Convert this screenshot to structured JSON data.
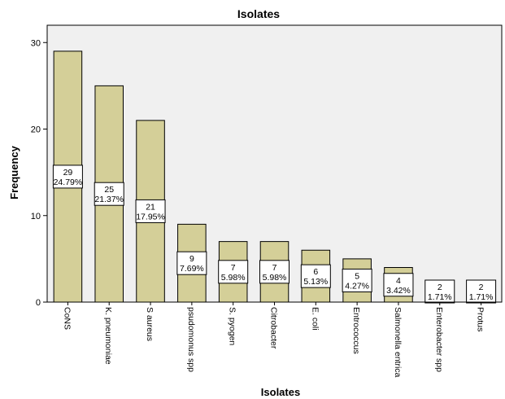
{
  "chart_data": {
    "type": "bar",
    "title": "Isolates",
    "xlabel": "Isolates",
    "ylabel": "Frequency",
    "ylim": [
      0,
      32
    ],
    "yticks": [
      0,
      10,
      20,
      30
    ],
    "grid": false,
    "categories": [
      "CoNS",
      "K. pneumoniae",
      "S aureus",
      "psudomonus spp",
      "S. pyogen",
      "Citrobacter",
      "E. coli",
      "Entrococcus",
      "Salmonella entrica",
      "Enterobacter spp",
      "Protus"
    ],
    "values": [
      29,
      25,
      21,
      9,
      7,
      7,
      6,
      5,
      4,
      2,
      2
    ],
    "percent_labels": [
      "24.79%",
      "21.37%",
      "17.95%",
      "7.69%",
      "5.98%",
      "5.98%",
      "5.13%",
      "4.27%",
      "3.42%",
      "1.71%",
      "1.71%"
    ],
    "colors": {
      "bar_fill": "#d4cf98",
      "plot_background": "#f0f0f0",
      "bar_stroke": "#000000"
    }
  }
}
